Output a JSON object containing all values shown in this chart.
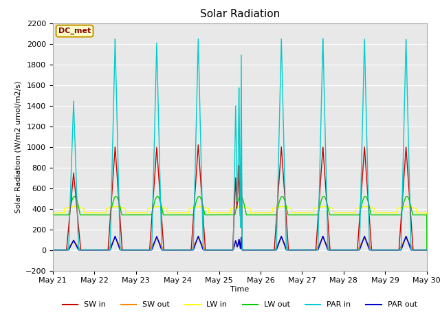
{
  "title": "Solar Radiation",
  "ylabel": "Solar Radiation (W/m2 umol/m2/s)",
  "xlabel": "Time",
  "ylim": [
    -200,
    2200
  ],
  "xlim": [
    0,
    9
  ],
  "yticks": [
    -200,
    0,
    200,
    400,
    600,
    800,
    1000,
    1200,
    1400,
    1600,
    1800,
    2000,
    2200
  ],
  "xtick_labels": [
    "May 21",
    "May 22",
    "May 23",
    "May 24",
    "May 25",
    "May 26",
    "May 27",
    "May 28",
    "May 29",
    "May 30"
  ],
  "annotation_text": "DC_met",
  "annotation_bg": "#ffffcc",
  "annotation_border": "#cc9900",
  "background_color": "#e8e8e8",
  "series": {
    "SW_in": {
      "color": "#cc0000",
      "label": "SW in"
    },
    "SW_out": {
      "color": "#ff8800",
      "label": "SW out"
    },
    "LW_in": {
      "color": "#ffff00",
      "label": "LW in"
    },
    "LW_out": {
      "color": "#00cc00",
      "label": "LW out"
    },
    "PAR_in": {
      "color": "#00cccc",
      "label": "PAR in"
    },
    "PAR_out": {
      "color": "#0000cc",
      "label": "PAR out"
    }
  }
}
